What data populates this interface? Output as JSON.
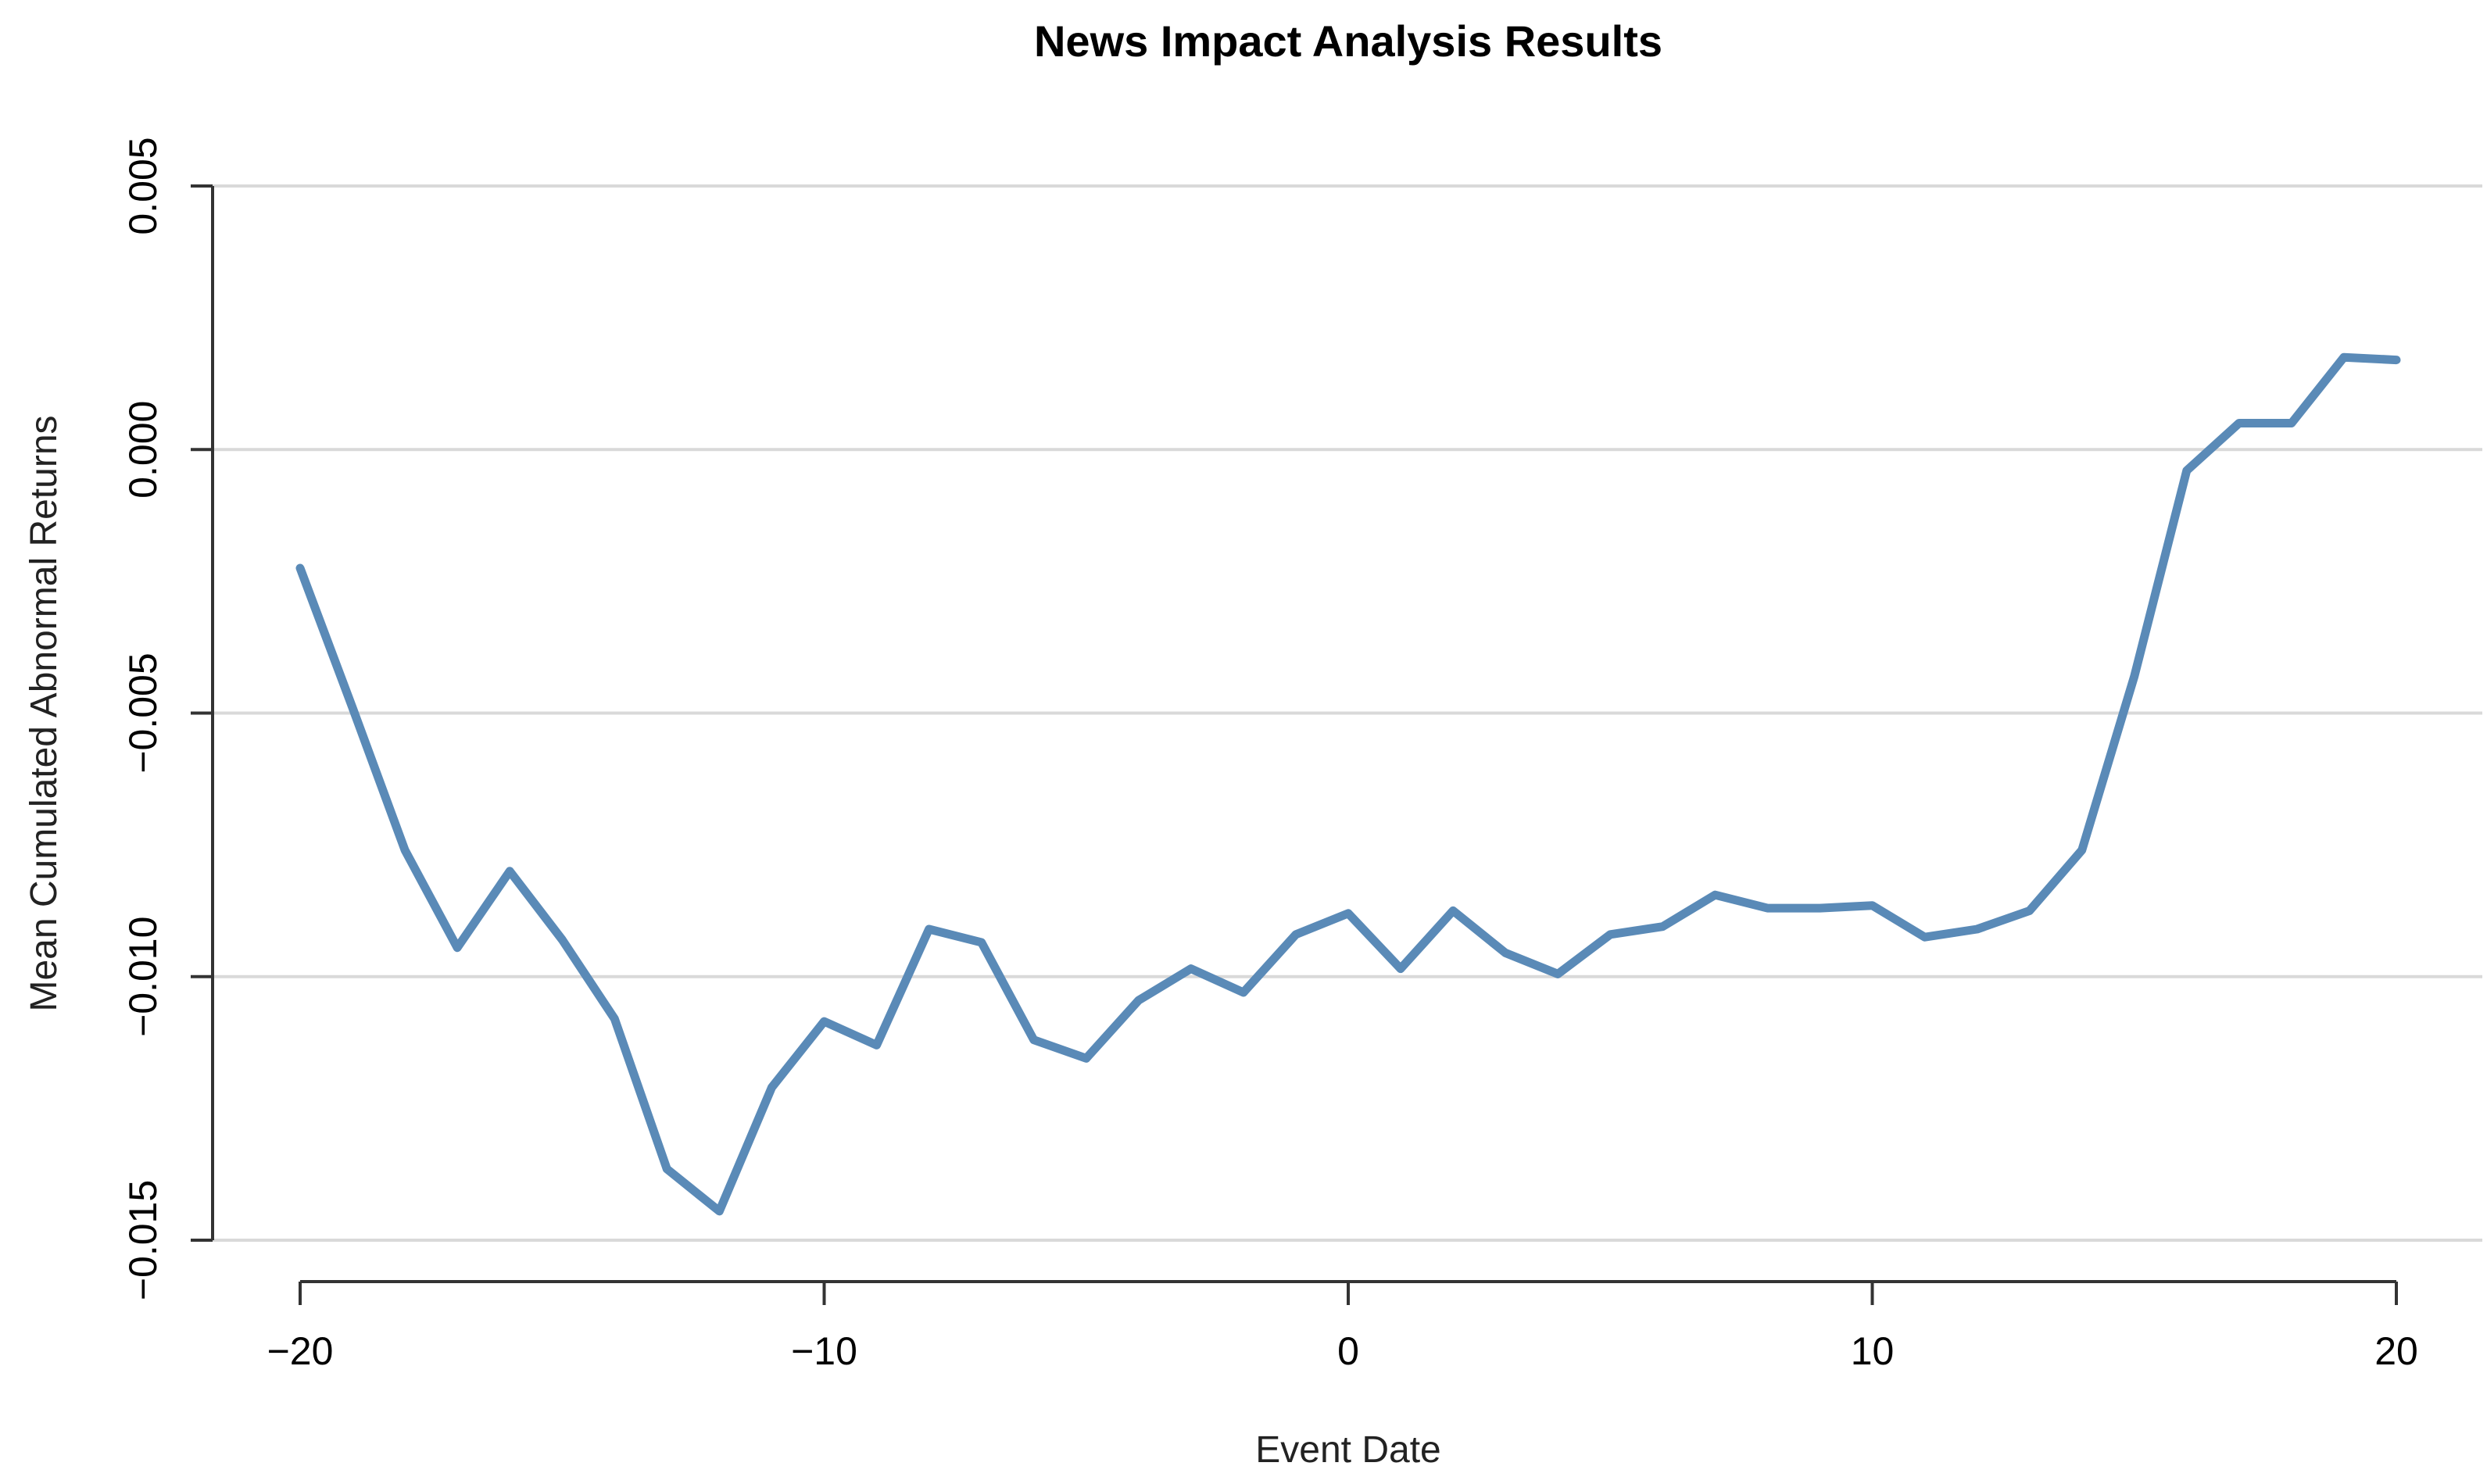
{
  "colors": {
    "series": "#5a8ab7",
    "grid": "#d9d9d9",
    "axis": "#333333"
  },
  "chart_data": {
    "type": "line",
    "title": "News Impact Analysis Results",
    "xlabel": "Event Date",
    "ylabel": "Mean Cumulated Abnormal Returns",
    "xlim": [
      -20,
      20
    ],
    "ylim": [
      -0.015,
      0.005
    ],
    "x_ticks": [
      -20,
      -10,
      0,
      10,
      20
    ],
    "x_tick_labels": [
      "−20",
      "−10",
      "0",
      "10",
      "20"
    ],
    "y_ticks": [
      -0.015,
      -0.01,
      -0.005,
      0.0,
      0.005
    ],
    "y_tick_labels": [
      "−0.015",
      "−0.010",
      "−0.005",
      "0.000",
      "0.005"
    ],
    "grid": "horizontal",
    "legend": "none",
    "series": [
      {
        "x": [
          -20,
          -19,
          -18,
          -17,
          -16,
          -15,
          -14,
          -13,
          -12,
          -11,
          -10,
          -9,
          -8,
          -7,
          -6,
          -5,
          -4,
          -3,
          -2,
          -1,
          0,
          1,
          2,
          3,
          4,
          5,
          6,
          7,
          8,
          9,
          10,
          11,
          12,
          13,
          14,
          15,
          16,
          17,
          18,
          19,
          20
        ],
        "values": [
          -0.00225,
          -0.0049,
          -0.0076,
          -0.00945,
          -0.008,
          -0.0093,
          -0.0108,
          -0.01365,
          -0.01445,
          -0.0121,
          -0.01085,
          -0.0113,
          -0.0091,
          -0.00935,
          -0.0112,
          -0.01155,
          -0.01045,
          -0.00985,
          -0.0103,
          -0.0092,
          -0.0088,
          -0.00985,
          -0.00875,
          -0.00955,
          -0.00995,
          -0.0092,
          -0.00905,
          -0.00845,
          -0.0087,
          -0.0087,
          -0.00865,
          -0.00925,
          -0.0091,
          -0.00875,
          -0.0076,
          -0.0043,
          -0.0004,
          0.0005,
          0.0005,
          0.00175,
          0.0017
        ]
      }
    ]
  }
}
